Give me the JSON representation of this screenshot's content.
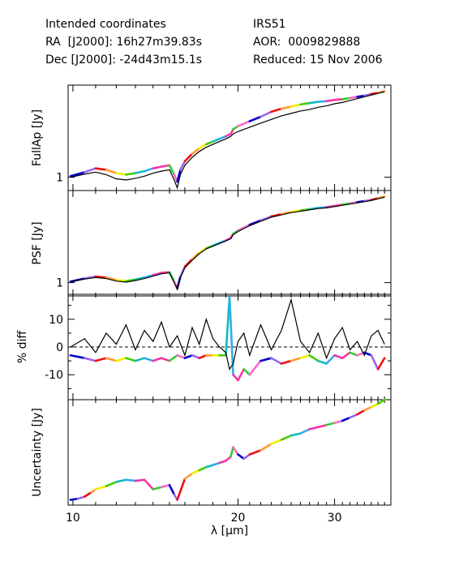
{
  "header": {
    "left_line1": "Intended coordinates",
    "left_line2": "RA  [J2000]: 16h27m39.83s",
    "left_line3": "Dec [J2000]: -24d43m15.1s",
    "right_line1": "IRS51",
    "right_line2": "AOR:  0009829888",
    "right_line3": "Reduced: 15 Nov 2006"
  },
  "chart_data": {
    "type": "line",
    "x_axis": {
      "label": "λ [μm]",
      "scale": "log",
      "range": [
        9.8,
        38.0
      ],
      "tick_labels": [
        "10",
        "20",
        "30"
      ],
      "ticks": [
        10,
        20,
        30
      ]
    },
    "segment_colors": [
      "#0000cc",
      "#9966ee",
      "#ee1111",
      "#ff9933",
      "#eeee00",
      "#44cc00",
      "#11bbbb",
      "#33aaee",
      "#ee33aa",
      "#ff3399",
      "#33cc33",
      "#ff66cc"
    ],
    "panels": [
      {
        "ylabel": "FullAp [Jy]",
        "scale": "log",
        "y_tick_labels": [
          "1"
        ],
        "y_ticks": [
          1
        ],
        "ylim": [
          0.78,
          5.6
        ],
        "series": [
          {
            "style": "colored",
            "x": [
              9.9,
              10.5,
              11.0,
              11.5,
              12.0,
              12.5,
              13.0,
              13.5,
              14.0,
              14.5,
              15.0,
              15.3,
              15.5,
              15.7,
              16.0,
              16.5,
              17.0,
              17.5,
              18.0,
              18.5,
              19.0,
              19.4,
              19.6,
              20.0,
              21.0,
              22.0,
              23.0,
              24.0,
              25.0,
              26.0,
              27.0,
              28.0,
              29.0,
              30.0,
              31.0,
              32.0,
              33.0,
              34.0,
              35.0,
              36.0,
              37.0
            ],
            "y": [
              1.02,
              1.1,
              1.18,
              1.15,
              1.08,
              1.05,
              1.08,
              1.12,
              1.18,
              1.22,
              1.25,
              1.05,
              0.92,
              1.15,
              1.35,
              1.55,
              1.72,
              1.85,
              1.95,
              2.05,
              2.15,
              2.25,
              2.45,
              2.6,
              2.85,
              3.1,
              3.4,
              3.6,
              3.75,
              3.9,
              4.0,
              4.1,
              4.15,
              4.25,
              4.3,
              4.4,
              4.5,
              4.6,
              4.75,
              4.85,
              5.0
            ]
          },
          {
            "style": "black",
            "x": [
              9.9,
              10.5,
              11.0,
              11.5,
              12.0,
              12.5,
              13.0,
              13.5,
              14.0,
              14.5,
              15.0,
              15.3,
              15.5,
              15.7,
              16.0,
              16.5,
              17.0,
              17.5,
              18.0,
              18.5,
              19.0,
              19.4,
              19.6,
              20.0,
              21.0,
              22.0,
              23.0,
              24.0,
              25.0,
              26.0,
              27.0,
              28.0,
              29.0,
              30.0,
              31.0,
              32.0,
              33.0,
              34.0,
              35.0,
              36.0,
              37.0
            ],
            "y": [
              1.0,
              1.06,
              1.1,
              1.05,
              0.97,
              0.95,
              0.98,
              1.02,
              1.08,
              1.12,
              1.15,
              0.95,
              0.82,
              1.05,
              1.25,
              1.45,
              1.62,
              1.75,
              1.85,
              1.95,
              2.05,
              2.15,
              2.25,
              2.35,
              2.55,
              2.75,
              2.95,
              3.15,
              3.3,
              3.45,
              3.55,
              3.7,
              3.8,
              3.95,
              4.05,
              4.2,
              4.35,
              4.5,
              4.65,
              4.8,
              4.95
            ]
          }
        ]
      },
      {
        "ylabel": "PSF [Jy]",
        "scale": "log",
        "y_tick_labels": [
          "1"
        ],
        "y_ticks": [
          1
        ],
        "ylim": [
          0.78,
          5.6
        ],
        "series": [
          {
            "style": "colored",
            "x": [
              9.9,
              10.5,
              11.0,
              11.5,
              12.0,
              12.5,
              13.0,
              13.5,
              14.0,
              14.5,
              15.0,
              15.3,
              15.5,
              15.7,
              16.0,
              16.5,
              17.0,
              17.5,
              18.0,
              18.5,
              19.0,
              19.4,
              19.6,
              20.0,
              21.0,
              22.0,
              23.0,
              24.0,
              25.0,
              26.0,
              27.0,
              28.0,
              29.0,
              30.0,
              31.0,
              32.0,
              33.0,
              34.0,
              35.0,
              36.0,
              37.0
            ],
            "y": [
              1.02,
              1.08,
              1.12,
              1.1,
              1.05,
              1.03,
              1.06,
              1.1,
              1.15,
              1.2,
              1.22,
              1.02,
              0.9,
              1.12,
              1.35,
              1.55,
              1.75,
              1.9,
              2.0,
              2.1,
              2.2,
              2.3,
              2.5,
              2.65,
              2.95,
              3.2,
              3.45,
              3.6,
              3.75,
              3.85,
              3.95,
              4.05,
              4.1,
              4.2,
              4.3,
              4.4,
              4.5,
              4.6,
              4.7,
              4.85,
              5.0
            ]
          },
          {
            "style": "black",
            "x": [
              9.9,
              10.5,
              11.0,
              11.5,
              12.0,
              12.5,
              13.0,
              13.5,
              14.0,
              14.5,
              15.0,
              15.3,
              15.5,
              15.7,
              16.0,
              16.5,
              17.0,
              17.5,
              18.0,
              18.5,
              19.0,
              19.4,
              19.6,
              20.0,
              21.0,
              22.0,
              23.0,
              24.0,
              25.0,
              26.0,
              27.0,
              28.0,
              29.0,
              30.0,
              31.0,
              32.0,
              33.0,
              34.0,
              35.0,
              36.0,
              37.0
            ],
            "y": [
              1.02,
              1.07,
              1.1,
              1.08,
              1.03,
              1.01,
              1.04,
              1.08,
              1.13,
              1.18,
              1.2,
              1.0,
              0.88,
              1.1,
              1.32,
              1.52,
              1.72,
              1.88,
              1.98,
              2.08,
              2.18,
              2.28,
              2.45,
              2.6,
              2.9,
              3.15,
              3.4,
              3.55,
              3.7,
              3.8,
              3.9,
              4.0,
              4.05,
              4.15,
              4.25,
              4.35,
              4.45,
              4.55,
              4.65,
              4.8,
              4.95
            ]
          }
        ]
      },
      {
        "ylabel": "% diff",
        "scale": "linear",
        "y_tick_labels": [
          "10",
          "0",
          "-10"
        ],
        "y_ticks": [
          10,
          0,
          -10
        ],
        "ylim": [
          -19,
          19
        ],
        "dashed_zero": true,
        "series": [
          {
            "style": "colored",
            "x": [
              9.9,
              10.5,
              11.0,
              11.5,
              12.0,
              12.5,
              13.0,
              13.5,
              14.0,
              14.5,
              15.0,
              15.5,
              16.0,
              16.5,
              17.0,
              17.5,
              18.0,
              18.5,
              19.0,
              19.3,
              19.6,
              20.0,
              20.5,
              21.0,
              22.0,
              23.0,
              24.0,
              25.0,
              26.0,
              27.0,
              28.0,
              29.0,
              30.0,
              31.0,
              32.0,
              33.0,
              34.0,
              35.0,
              36.0,
              37.0
            ],
            "y": [
              -3,
              -4,
              -5,
              -4,
              -5,
              -4,
              -5,
              -4,
              -5,
              -4,
              -5,
              -3,
              -4,
              -3,
              -4,
              -3,
              -3,
              -3,
              -3,
              18,
              -10,
              -12,
              -8,
              -10,
              -5,
              -4,
              -6,
              -5,
              -4,
              -3,
              -5,
              -6,
              -3,
              -4,
              -2,
              -3,
              -2,
              -3,
              -8,
              -4
            ]
          },
          {
            "style": "black",
            "x": [
              9.9,
              10.5,
              11.0,
              11.5,
              12.0,
              12.5,
              13.0,
              13.5,
              14.0,
              14.5,
              15.0,
              15.5,
              16.0,
              16.5,
              17.0,
              17.5,
              18.0,
              18.5,
              19.0,
              19.3,
              19.6,
              20.0,
              20.5,
              21.0,
              22.0,
              23.0,
              24.0,
              25.0,
              26.0,
              27.0,
              28.0,
              29.0,
              30.0,
              31.0,
              32.0,
              33.0,
              34.0,
              35.0,
              36.0,
              37.0
            ],
            "y": [
              0,
              3,
              -2,
              5,
              1,
              8,
              -1,
              6,
              2,
              9,
              0,
              4,
              -3,
              7,
              1,
              10,
              3,
              0,
              -2,
              -8,
              -6,
              2,
              5,
              -3,
              8,
              -1,
              6,
              17,
              2,
              -2,
              5,
              -4,
              3,
              7,
              -1,
              2,
              -3,
              4,
              6,
              1
            ]
          }
        ]
      },
      {
        "ylabel": "Uncertainty [Jy]",
        "scale": "linear",
        "y_tick_labels": [],
        "y_ticks": [],
        "ylim": [
          0,
          1
        ],
        "series": [
          {
            "style": "colored",
            "x": [
              9.9,
              10.2,
              10.5,
              10.8,
              11.0,
              11.5,
              12.0,
              12.5,
              13.0,
              13.5,
              14.0,
              14.5,
              15.0,
              15.3,
              15.5,
              16.0,
              16.5,
              17.0,
              17.5,
              18.0,
              18.5,
              19.0,
              19.4,
              19.6,
              20.0,
              20.5,
              21.0,
              22.0,
              23.0,
              24.0,
              25.0,
              26.0,
              27.0,
              28.0,
              29.0,
              30.0,
              31.0,
              32.0,
              33.0,
              34.0,
              35.0,
              36.0,
              37.0
            ],
            "y": [
              0.05,
              0.06,
              0.08,
              0.12,
              0.15,
              0.18,
              0.22,
              0.24,
              0.23,
              0.24,
              0.15,
              0.17,
              0.19,
              0.1,
              0.05,
              0.25,
              0.3,
              0.33,
              0.36,
              0.38,
              0.4,
              0.42,
              0.46,
              0.55,
              0.48,
              0.44,
              0.48,
              0.52,
              0.58,
              0.62,
              0.66,
              0.68,
              0.72,
              0.74,
              0.76,
              0.78,
              0.8,
              0.83,
              0.86,
              0.9,
              0.93,
              0.96,
              1.0
            ]
          }
        ]
      }
    ]
  }
}
